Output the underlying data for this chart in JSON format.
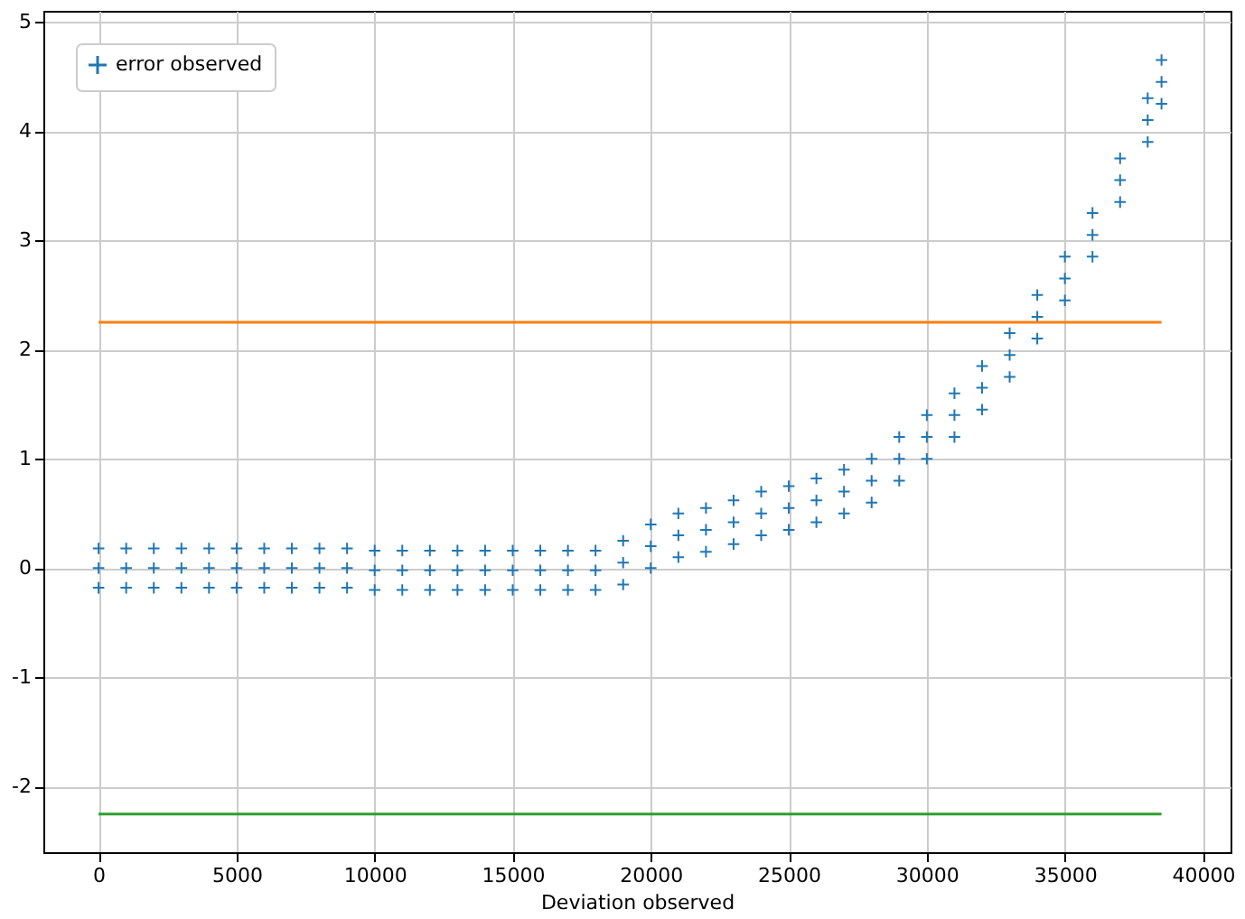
{
  "chart_data": {
    "type": "scatter",
    "xlabel": "Deviation observed",
    "xlim": [
      -2000,
      41000
    ],
    "xticks": [
      0,
      5000,
      10000,
      15000,
      20000,
      25000,
      30000,
      35000,
      40000
    ],
    "ylim": [
      -2.6,
      5.1
    ],
    "yticks": [
      -2,
      -1,
      0,
      1,
      2,
      3,
      4,
      5
    ],
    "grid": true,
    "legend": "top left",
    "marker": "cross",
    "series": [
      {
        "name": "error observed",
        "color": "#1f77b4",
        "x": [
          0,
          0,
          0,
          1000,
          1000,
          1000,
          2000,
          2000,
          2000,
          3000,
          3000,
          3000,
          4000,
          4000,
          4000,
          5000,
          5000,
          5000,
          6000,
          6000,
          6000,
          7000,
          7000,
          7000,
          8000,
          8000,
          8000,
          9000,
          9000,
          9000,
          10000,
          10000,
          10000,
          11000,
          11000,
          11000,
          12000,
          12000,
          12000,
          13000,
          13000,
          13000,
          14000,
          14000,
          14000,
          15000,
          15000,
          15000,
          16000,
          16000,
          16000,
          17000,
          17000,
          17000,
          18000,
          18000,
          18000,
          19000,
          19000,
          19000,
          20000,
          20000,
          20000,
          21000,
          21000,
          21000,
          22000,
          22000,
          22000,
          23000,
          23000,
          23000,
          24000,
          24000,
          24000,
          25000,
          25000,
          25000,
          26000,
          26000,
          26000,
          27000,
          27000,
          27000,
          28000,
          28000,
          28000,
          29000,
          29000,
          29000,
          30000,
          30000,
          30000,
          31000,
          31000,
          31000,
          32000,
          32000,
          32000,
          33000,
          33000,
          33000,
          34000,
          34000,
          34000,
          35000,
          35000,
          35000,
          36000,
          36000,
          36000,
          37000,
          37000,
          37000,
          38000,
          38000,
          38000,
          38500,
          38500,
          38500
        ],
        "values": [
          0.18,
          0,
          -0.18,
          0.18,
          0,
          -0.18,
          0.18,
          0,
          -0.18,
          0.18,
          0,
          -0.18,
          0.18,
          0,
          -0.18,
          0.18,
          0,
          -0.18,
          0.18,
          0,
          -0.18,
          0.18,
          0,
          -0.18,
          0.18,
          0,
          -0.18,
          0.18,
          0,
          -0.18,
          0.16,
          -0.02,
          -0.2,
          0.16,
          -0.02,
          -0.2,
          0.16,
          -0.02,
          -0.2,
          0.16,
          -0.02,
          -0.2,
          0.16,
          -0.02,
          -0.2,
          0.16,
          -0.02,
          -0.2,
          0.16,
          -0.02,
          -0.2,
          0.16,
          -0.02,
          -0.2,
          0.16,
          -0.02,
          -0.2,
          0.25,
          0.05,
          -0.15,
          0.4,
          0.2,
          0,
          0.5,
          0.3,
          0.1,
          0.55,
          0.35,
          0.15,
          0.62,
          0.42,
          0.22,
          0.7,
          0.5,
          0.3,
          0.75,
          0.55,
          0.35,
          0.82,
          0.62,
          0.42,
          0.9,
          0.7,
          0.5,
          1.0,
          0.8,
          0.6,
          1.2,
          1.0,
          0.8,
          1.4,
          1.2,
          1.0,
          1.6,
          1.4,
          1.2,
          1.85,
          1.65,
          1.45,
          2.15,
          1.95,
          1.75,
          2.5,
          2.3,
          2.1,
          2.85,
          2.65,
          2.45,
          3.25,
          3.05,
          2.85,
          3.75,
          3.55,
          3.35,
          4.3,
          4.1,
          3.9,
          4.65,
          4.45,
          4.25
        ]
      },
      {
        "color": "#ff7f0e",
        "type": "line",
        "marker": "none",
        "x": [
          0,
          38500
        ],
        "values": [
          2.25,
          2.25
        ]
      },
      {
        "color": "#2ca02c",
        "type": "line",
        "marker": "none",
        "x": [
          0,
          38500
        ],
        "values": [
          -2.25,
          -2.25
        ]
      }
    ]
  }
}
